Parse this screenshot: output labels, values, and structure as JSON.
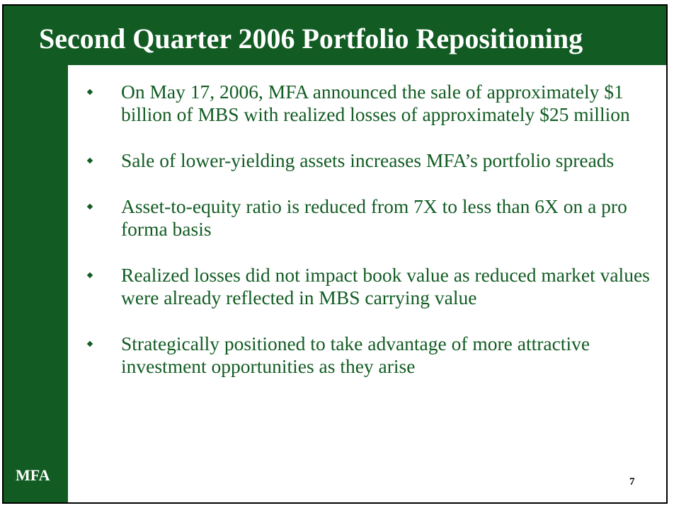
{
  "slide": {
    "title": "Second Quarter 2006 Portfolio Repositioning",
    "bullets": [
      {
        "text": "On May 17, 2006, MFA announced the sale of approximately $1 billion of MBS with realized losses of approximately $25 million"
      },
      {
        "text": "Sale of lower-yielding assets increases MFA’s portfolio spreads"
      },
      {
        "text": "Asset-to-equity ratio is reduced from 7X to less than 6X on a pro forma basis"
      },
      {
        "text": "Realized losses did not impact book value as reduced market values were already reflected in MBS carrying value"
      },
      {
        "text": "Strategically positioned to take advantage of more attractive investment opportunities as they arise"
      }
    ],
    "bullet_icon": "diamond-bullet-icon",
    "logo_text": "MFA",
    "page_number": "7",
    "colors": {
      "accent": "#125c23",
      "background": "#ffffff",
      "title_text": "#ffffff"
    }
  }
}
